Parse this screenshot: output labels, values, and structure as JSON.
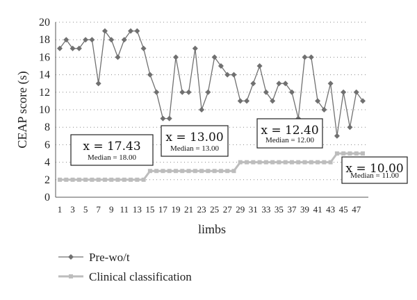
{
  "chart_data": {
    "type": "line",
    "xlabel": "limbs",
    "ylabel": "CEAP score (s)",
    "ylim": [
      0,
      20
    ],
    "yticks": [
      0,
      2,
      4,
      6,
      8,
      10,
      12,
      14,
      16,
      18,
      20
    ],
    "x": [
      1,
      2,
      3,
      4,
      5,
      6,
      7,
      8,
      9,
      10,
      11,
      12,
      13,
      14,
      15,
      16,
      17,
      18,
      19,
      20,
      21,
      22,
      23,
      24,
      25,
      26,
      27,
      28,
      29,
      30,
      31,
      32,
      33,
      34,
      35,
      36,
      37,
      38,
      39,
      40,
      41,
      42,
      43,
      44,
      45,
      46,
      47,
      48
    ],
    "xtick_labels": [
      "1",
      "3",
      "5",
      "7",
      "9",
      "11",
      "13",
      "15",
      "17",
      "19",
      "21",
      "23",
      "25",
      "27",
      "29",
      "31",
      "33",
      "35",
      "37",
      "39",
      "41",
      "43",
      "45",
      "47"
    ],
    "grid": "horizontal dotted",
    "legend_position": "bottom-left",
    "series": [
      {
        "name": "Pre-wo/t",
        "color": "#707070",
        "marker": "diamond",
        "values": [
          17,
          18,
          17,
          17,
          18,
          18,
          13,
          19,
          18,
          16,
          18,
          19,
          19,
          17,
          14,
          12,
          9,
          9,
          16,
          12,
          12,
          17,
          10,
          12,
          16,
          15,
          14,
          14,
          11,
          11,
          13,
          15,
          12,
          11,
          13,
          13,
          12,
          9,
          16,
          16,
          11,
          10,
          13,
          7,
          12,
          8,
          12,
          11
        ]
      },
      {
        "name": "Clinical classification",
        "color": "#bdbdbd",
        "marker": "square",
        "values": [
          2,
          2,
          2,
          2,
          2,
          2,
          2,
          2,
          2,
          2,
          2,
          2,
          2,
          2,
          3,
          3,
          3,
          3,
          3,
          3,
          3,
          3,
          3,
          3,
          3,
          3,
          3,
          3,
          4,
          4,
          4,
          4,
          4,
          4,
          4,
          4,
          4,
          4,
          4,
          4,
          4,
          4,
          4,
          5,
          5,
          5,
          5,
          5
        ]
      }
    ],
    "annotations": [
      {
        "main": "x = 17.43",
        "sub": "Median = 18.00"
      },
      {
        "main": "x = 13.00",
        "sub": "Median = 13.00"
      },
      {
        "main": "x = 12.40",
        "sub": "Median = 12.00"
      },
      {
        "main": "x = 10.00",
        "sub": "Median = 11.00"
      }
    ]
  }
}
